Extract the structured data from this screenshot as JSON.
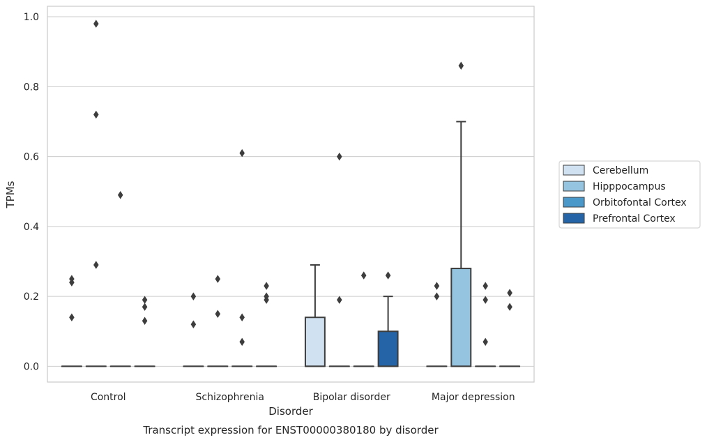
{
  "chart_data": {
    "type": "box",
    "caption": "Transcript expression for ENST00000380180 by disorder",
    "xlabel": "Disorder",
    "ylabel": "TPMs",
    "ylim": [
      -0.045,
      1.03
    ],
    "yticks": [
      0.0,
      0.2,
      0.4,
      0.6,
      0.8,
      1.0
    ],
    "ytick_labels": [
      "0.0",
      "0.2",
      "0.4",
      "0.6",
      "0.8",
      "1.0"
    ],
    "grid": "y",
    "legend_position": "right",
    "categories": [
      "Control",
      "Schizophrenia",
      "Bipolar disorder",
      "Major depression"
    ],
    "series": [
      {
        "name": "Cerebellum",
        "color": "#d0e1f2",
        "boxes": [
          {
            "q1": 0,
            "median": 0,
            "q3": 0,
            "whisker_low": 0,
            "whisker_high": 0,
            "outliers": [
              0.14,
              0.24,
              0.25
            ]
          },
          {
            "q1": 0,
            "median": 0,
            "q3": 0,
            "whisker_low": 0,
            "whisker_high": 0,
            "outliers": [
              0.12,
              0.2
            ]
          },
          {
            "q1": 0,
            "median": 0,
            "q3": 0.14,
            "whisker_low": 0,
            "whisker_high": 0.29,
            "outliers": []
          },
          {
            "q1": 0,
            "median": 0,
            "q3": 0,
            "whisker_low": 0,
            "whisker_high": 0,
            "outliers": [
              0.2,
              0.23
            ]
          }
        ]
      },
      {
        "name": "Hipppocampus",
        "color": "#94c4df",
        "boxes": [
          {
            "q1": 0,
            "median": 0,
            "q3": 0,
            "whisker_low": 0,
            "whisker_high": 0,
            "outliers": [
              0.29,
              0.72,
              0.98
            ]
          },
          {
            "q1": 0,
            "median": 0,
            "q3": 0,
            "whisker_low": 0,
            "whisker_high": 0,
            "outliers": [
              0.15,
              0.25
            ]
          },
          {
            "q1": 0,
            "median": 0,
            "q3": 0,
            "whisker_low": 0,
            "whisker_high": 0,
            "outliers": [
              0.19,
              0.6
            ]
          },
          {
            "q1": 0,
            "median": 0,
            "q3": 0.28,
            "whisker_low": 0,
            "whisker_high": 0.7,
            "outliers": [
              0.86
            ]
          }
        ]
      },
      {
        "name": "Orbitofontal Cortex",
        "color": "#4a98c9",
        "boxes": [
          {
            "q1": 0,
            "median": 0,
            "q3": 0,
            "whisker_low": 0,
            "whisker_high": 0,
            "outliers": [
              0.49
            ]
          },
          {
            "q1": 0,
            "median": 0,
            "q3": 0,
            "whisker_low": 0,
            "whisker_high": 0,
            "outliers": [
              0.07,
              0.14,
              0.61
            ]
          },
          {
            "q1": 0,
            "median": 0,
            "q3": 0,
            "whisker_low": 0,
            "whisker_high": 0,
            "outliers": [
              0.26
            ]
          },
          {
            "q1": 0,
            "median": 0,
            "q3": 0,
            "whisker_low": 0,
            "whisker_high": 0,
            "outliers": [
              0.07,
              0.19,
              0.23
            ]
          }
        ]
      },
      {
        "name": "Prefrontal Cortex",
        "color": "#2565a7",
        "boxes": [
          {
            "q1": 0,
            "median": 0,
            "q3": 0,
            "whisker_low": 0,
            "whisker_high": 0,
            "outliers": [
              0.13,
              0.17,
              0.19
            ]
          },
          {
            "q1": 0,
            "median": 0,
            "q3": 0,
            "whisker_low": 0,
            "whisker_high": 0,
            "outliers": [
              0.19,
              0.2,
              0.23
            ]
          },
          {
            "q1": 0,
            "median": 0,
            "q3": 0.1,
            "whisker_low": 0,
            "whisker_high": 0.2,
            "outliers": [
              0.26
            ]
          },
          {
            "q1": 0,
            "median": 0,
            "q3": 0,
            "whisker_low": 0,
            "whisker_high": 0,
            "outliers": [
              0.17,
              0.21
            ]
          }
        ]
      }
    ]
  }
}
